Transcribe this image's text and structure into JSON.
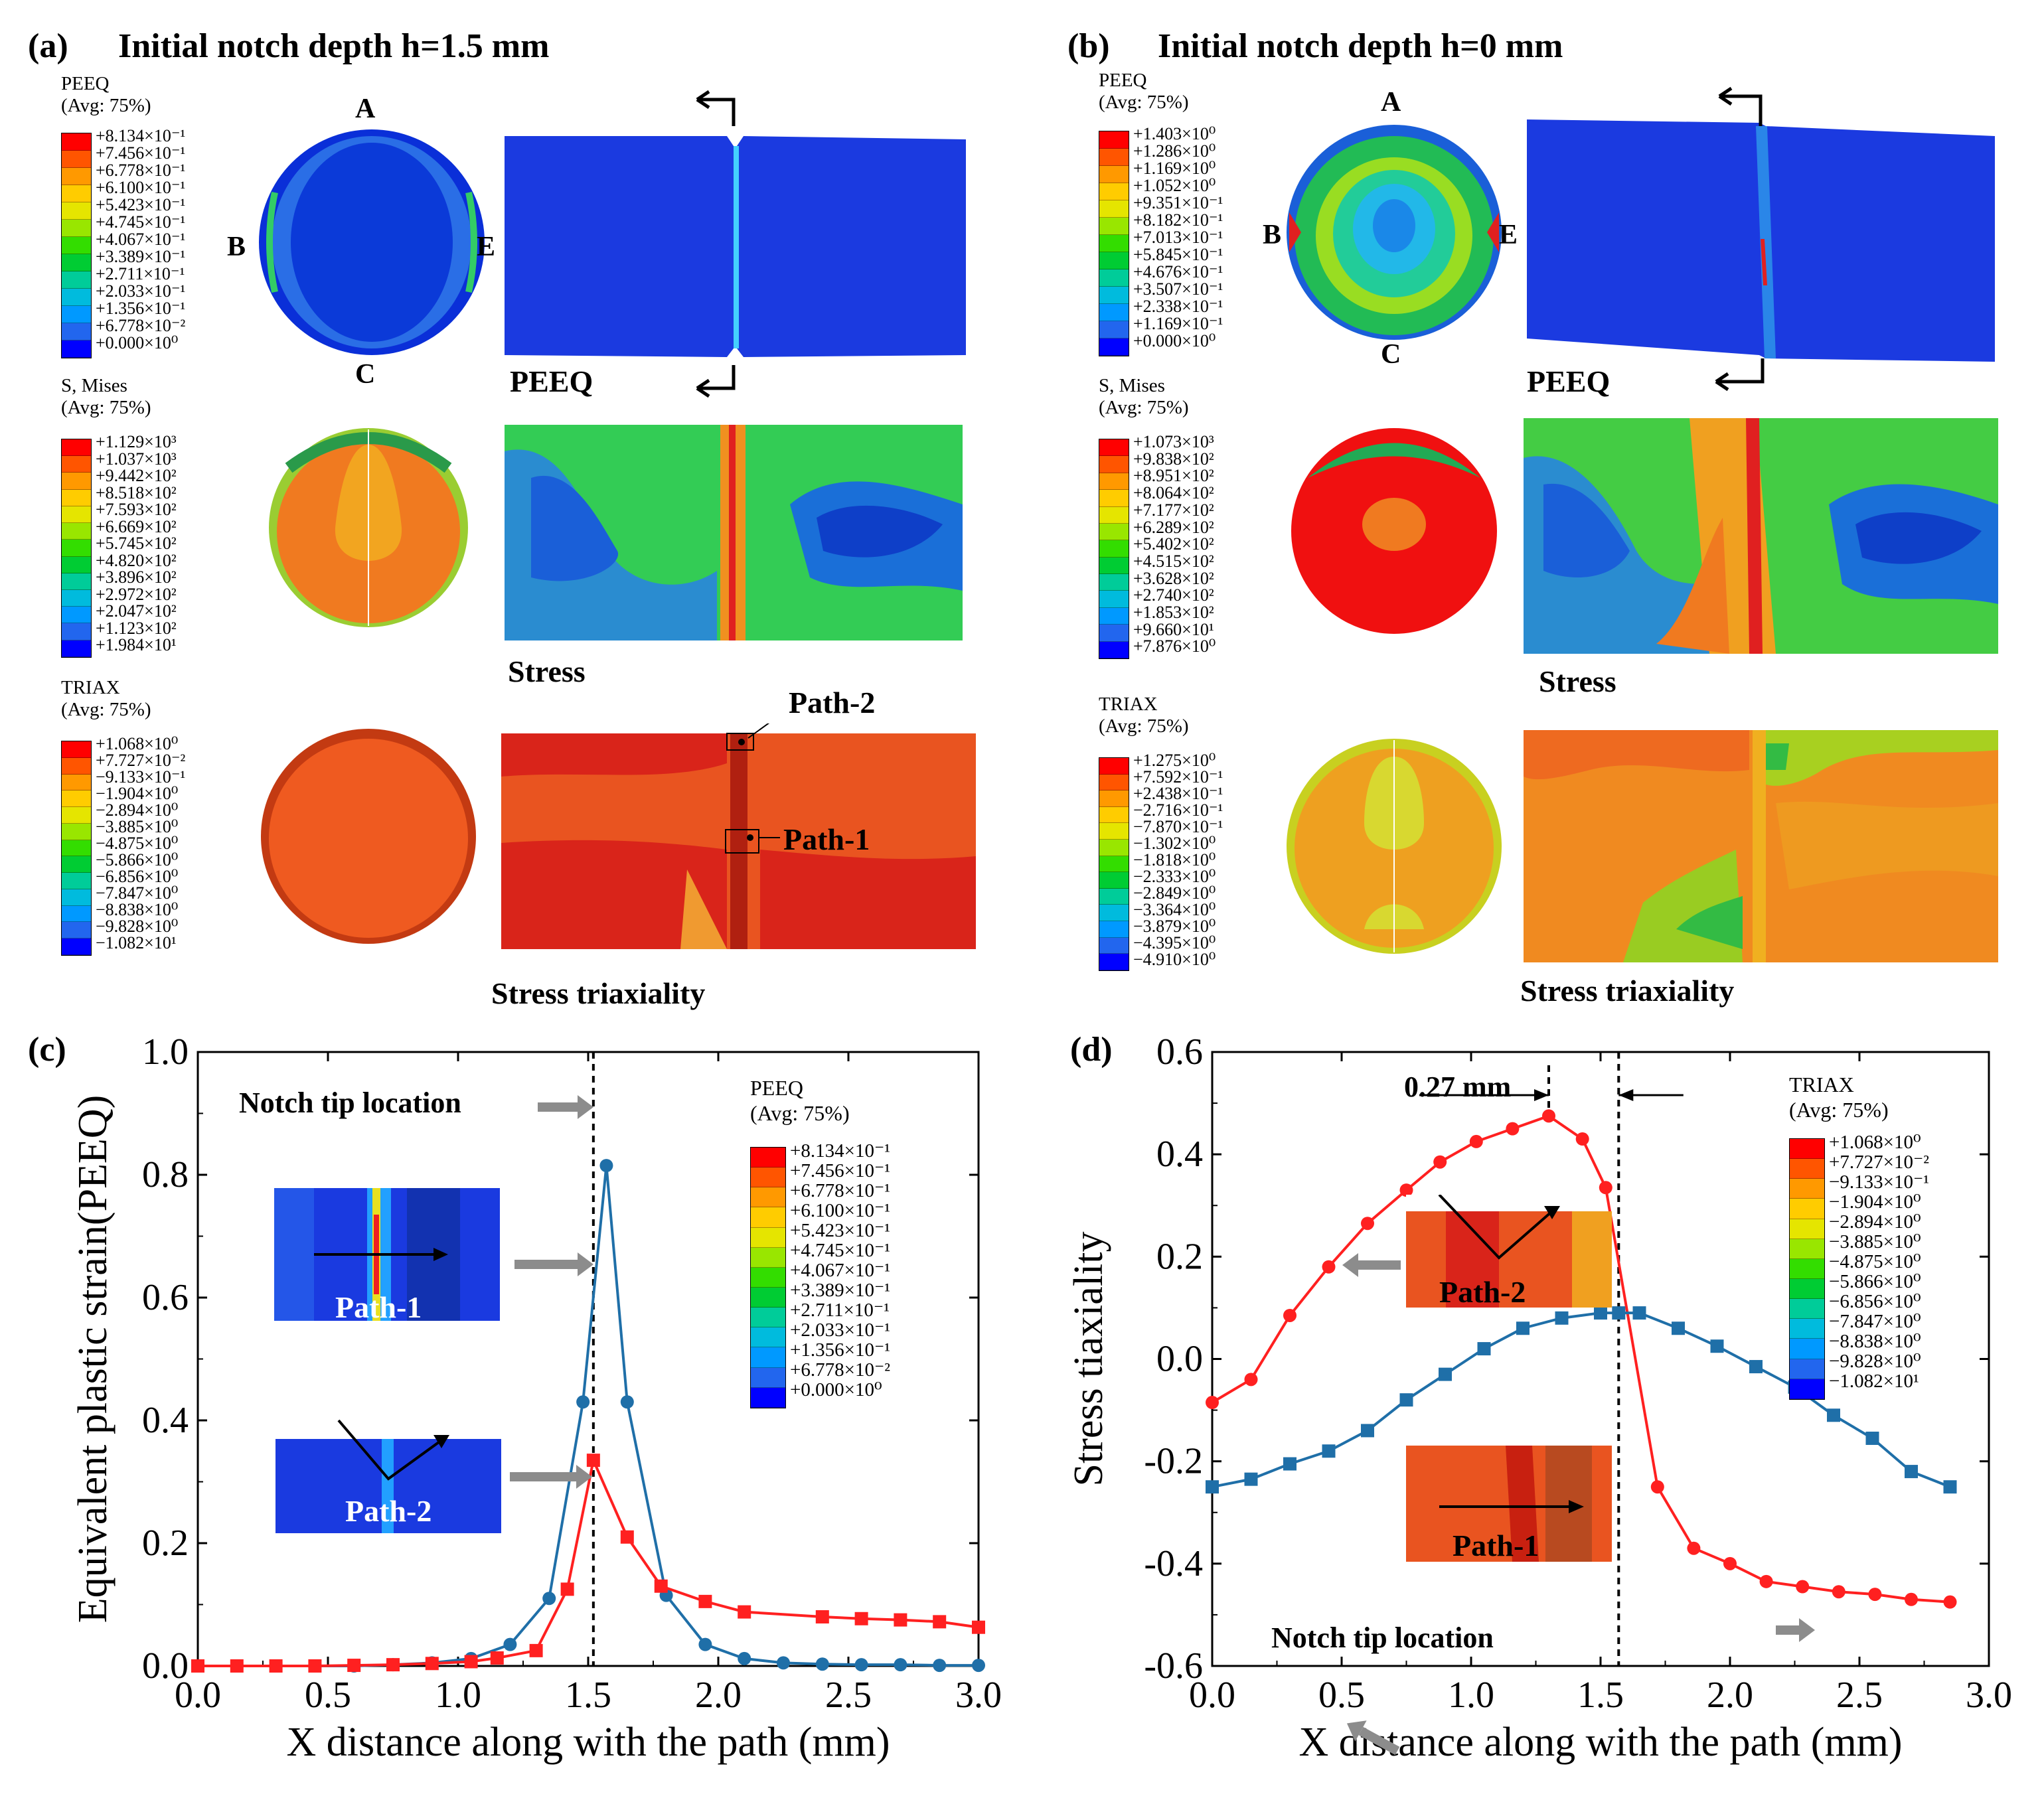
{
  "panel_a": {
    "label": "(a)",
    "title": "Initial notch depth h=1.5 mm",
    "points": {
      "A": "A",
      "B": "B",
      "C": "C",
      "E": "E"
    },
    "peeq_caption": "PEEQ",
    "stress_caption": "Stress",
    "triax_caption": "Stress  triaxiality",
    "path2_label": "Path-2",
    "path1_label": "Path-1",
    "legend_peeq": {
      "name": "PEEQ",
      "avg": "(Avg: 75%)",
      "values": [
        "+8.134×10⁻¹",
        "+7.456×10⁻¹",
        "+6.778×10⁻¹",
        "+6.100×10⁻¹",
        "+5.423×10⁻¹",
        "+4.745×10⁻¹",
        "+4.067×10⁻¹",
        "+3.389×10⁻¹",
        "+2.711×10⁻¹",
        "+2.033×10⁻¹",
        "+1.356×10⁻¹",
        "+6.778×10⁻²",
        "+0.000×10⁰"
      ]
    },
    "legend_mises": {
      "name": "S, Mises",
      "avg": "(Avg: 75%)",
      "values": [
        "+1.129×10³",
        "+1.037×10³",
        "+9.442×10²",
        "+8.518×10²",
        "+7.593×10²",
        "+6.669×10²",
        "+5.745×10²",
        "+4.820×10²",
        "+3.896×10²",
        "+2.972×10²",
        "+2.047×10²",
        "+1.123×10²",
        "+1.984×10¹"
      ]
    },
    "legend_triax": {
      "name": "TRIAX",
      "avg": "(Avg: 75%)",
      "values": [
        "+1.068×10⁰",
        "+7.727×10⁻²",
        "−9.133×10⁻¹",
        "−1.904×10⁰",
        "−2.894×10⁰",
        "−3.885×10⁰",
        "−4.875×10⁰",
        "−5.866×10⁰",
        "−6.856×10⁰",
        "−7.847×10⁰",
        "−8.838×10⁰",
        "−9.828×10⁰",
        "−1.082×10¹"
      ]
    }
  },
  "panel_b": {
    "label": "(b)",
    "title": "Initial notch depth h=0 mm",
    "points": {
      "A": "A",
      "B": "B",
      "C": "C",
      "E": "E"
    },
    "peeq_caption": "PEEQ",
    "stress_caption": "Stress",
    "triax_caption": "Stress  triaxiality",
    "legend_peeq": {
      "name": "PEEQ",
      "avg": "(Avg: 75%)",
      "values": [
        "+1.403×10⁰",
        "+1.286×10⁰",
        "+1.169×10⁰",
        "+1.052×10⁰",
        "+9.351×10⁻¹",
        "+8.182×10⁻¹",
        "+7.013×10⁻¹",
        "+5.845×10⁻¹",
        "+4.676×10⁻¹",
        "+3.507×10⁻¹",
        "+2.338×10⁻¹",
        "+1.169×10⁻¹",
        "+0.000×10⁰"
      ]
    },
    "legend_mises": {
      "name": "S, Mises",
      "avg": "(Avg: 75%)",
      "values": [
        "+1.073×10³",
        "+9.838×10²",
        "+8.951×10²",
        "+8.064×10²",
        "+7.177×10²",
        "+6.289×10²",
        "+5.402×10²",
        "+4.515×10²",
        "+3.628×10²",
        "+2.740×10²",
        "+1.853×10²",
        "+9.660×10¹",
        "+7.876×10⁰"
      ]
    },
    "legend_triax": {
      "name": "TRIAX",
      "avg": "(Avg: 75%)",
      "values": [
        "+1.275×10⁰",
        "+7.592×10⁻¹",
        "+2.438×10⁻¹",
        "−2.716×10⁻¹",
        "−7.870×10⁻¹",
        "−1.302×10⁰",
        "−1.818×10⁰",
        "−2.333×10⁰",
        "−2.849×10⁰",
        "−3.364×10⁰",
        "−3.879×10⁰",
        "−4.395×10⁰",
        "−4.910×10⁰"
      ]
    }
  },
  "legend_colors": [
    "#ff0000",
    "#ff5500",
    "#ff9900",
    "#ffcc00",
    "#e5e500",
    "#99e600",
    "#33dd00",
    "#00cc33",
    "#00cc99",
    "#00bbdd",
    "#0099ff",
    "#2266ee",
    "#0000ff"
  ],
  "panel_c": {
    "label": "(c)",
    "annotation": "Notch tip location",
    "inset1_label": "Path-1",
    "inset2_label": "Path-2",
    "legend": {
      "name": "PEEQ",
      "avg": "(Avg: 75%)",
      "values": [
        "+8.134×10⁻¹",
        "+7.456×10⁻¹",
        "+6.778×10⁻¹",
        "+6.100×10⁻¹",
        "+5.423×10⁻¹",
        "+4.745×10⁻¹",
        "+4.067×10⁻¹",
        "+3.389×10⁻¹",
        "+2.711×10⁻¹",
        "+2.033×10⁻¹",
        "+1.356×10⁻¹",
        "+6.778×10⁻²",
        "+0.000×10⁰"
      ]
    }
  },
  "panel_d": {
    "label": "(d)",
    "annotation": "Notch tip location",
    "offset_label": "0.27 mm",
    "inset1_label": "Path-1",
    "inset2_label": "Path-2",
    "legend": {
      "name": "TRIAX",
      "avg": "(Avg: 75%)",
      "values": [
        "+1.068×10⁰",
        "+7.727×10⁻²",
        "−9.133×10⁻¹",
        "−1.904×10⁰",
        "−2.894×10⁰",
        "−3.885×10⁰",
        "−4.875×10⁰",
        "−5.866×10⁰",
        "−6.856×10⁰",
        "−7.847×10⁰",
        "−8.838×10⁰",
        "−9.828×10⁰",
        "−1.082×10¹"
      ]
    }
  },
  "chart_data": [
    {
      "type": "line",
      "panel": "c",
      "xlabel": "X distance along with the path (mm)",
      "ylabel": "Equivalent plastic strain(PEEQ)",
      "xlim": [
        0.0,
        3.0
      ],
      "ylim": [
        0.0,
        1.0
      ],
      "xticks": [
        "0.0",
        "0.5",
        "1.0",
        "1.5",
        "2.0",
        "2.5",
        "3.0"
      ],
      "yticks": [
        "0.0",
        "0.2",
        "0.4",
        "0.6",
        "0.8",
        "1.0"
      ],
      "notch_x": 1.52,
      "series": [
        {
          "name": "Path-1",
          "color": "#1f6fa8",
          "marker": "circle",
          "x": [
            0,
            0.15,
            0.3,
            0.45,
            0.6,
            0.75,
            0.9,
            1.05,
            1.2,
            1.35,
            1.48,
            1.57,
            1.65,
            1.8,
            1.95,
            2.1,
            2.25,
            2.4,
            2.55,
            2.7,
            2.85,
            3.0
          ],
          "y": [
            0,
            0,
            0,
            0,
            0,
            0.002,
            0.005,
            0.012,
            0.035,
            0.11,
            0.43,
            0.815,
            0.43,
            0.115,
            0.035,
            0.012,
            0.005,
            0.003,
            0.002,
            0.002,
            0.001,
            0.001
          ]
        },
        {
          "name": "Path-2",
          "color": "#ff2020",
          "marker": "square",
          "x": [
            0,
            0.15,
            0.3,
            0.45,
            0.6,
            0.75,
            0.9,
            1.05,
            1.15,
            1.3,
            1.42,
            1.52,
            1.65,
            1.78,
            1.95,
            2.1,
            2.4,
            2.55,
            2.7,
            2.85,
            3.0
          ],
          "y": [
            0,
            0,
            0,
            0,
            0.001,
            0.002,
            0.004,
            0.007,
            0.013,
            0.025,
            0.125,
            0.335,
            0.21,
            0.13,
            0.105,
            0.088,
            0.08,
            0.077,
            0.075,
            0.072,
            0.063
          ]
        }
      ]
    },
    {
      "type": "line",
      "panel": "d",
      "xlabel": "X distance along with the path (mm)",
      "ylabel": "Stress tiaxiality",
      "xlim": [
        0.0,
        3.0
      ],
      "ylim": [
        -0.6,
        0.6
      ],
      "xticks": [
        "0.0",
        "0.5",
        "1.0",
        "1.5",
        "2.0",
        "2.5",
        "3.0"
      ],
      "yticks": [
        "-0.6",
        "-0.4",
        "-0.2",
        "0.0",
        "0.2",
        "0.4",
        "0.6"
      ],
      "notch_x": 1.57,
      "peak_x": 1.3,
      "series": [
        {
          "name": "Path-2",
          "color": "#ff2020",
          "marker": "circle",
          "x": [
            0,
            0.15,
            0.3,
            0.45,
            0.6,
            0.75,
            0.88,
            1.02,
            1.16,
            1.3,
            1.43,
            1.52,
            1.72,
            1.86,
            2.0,
            2.14,
            2.28,
            2.42,
            2.56,
            2.7,
            2.85
          ],
          "y": [
            -0.085,
            -0.04,
            0.085,
            0.18,
            0.265,
            0.33,
            0.385,
            0.425,
            0.45,
            0.475,
            0.43,
            0.335,
            -0.25,
            -0.37,
            -0.4,
            -0.435,
            -0.445,
            -0.455,
            -0.46,
            -0.47,
            -0.475
          ]
        },
        {
          "name": "Path-1",
          "color": "#1f6fa8",
          "marker": "square",
          "x": [
            0,
            0.15,
            0.3,
            0.45,
            0.6,
            0.75,
            0.9,
            1.05,
            1.2,
            1.35,
            1.5,
            1.57,
            1.65,
            1.8,
            1.95,
            2.1,
            2.25,
            2.4,
            2.55,
            2.7,
            2.85
          ],
          "y": [
            -0.25,
            -0.235,
            -0.205,
            -0.18,
            -0.14,
            -0.08,
            -0.03,
            0.02,
            0.06,
            0.08,
            0.09,
            0.09,
            0.09,
            0.06,
            0.025,
            -0.015,
            -0.055,
            -0.11,
            -0.155,
            -0.22,
            -0.25
          ]
        }
      ]
    }
  ]
}
